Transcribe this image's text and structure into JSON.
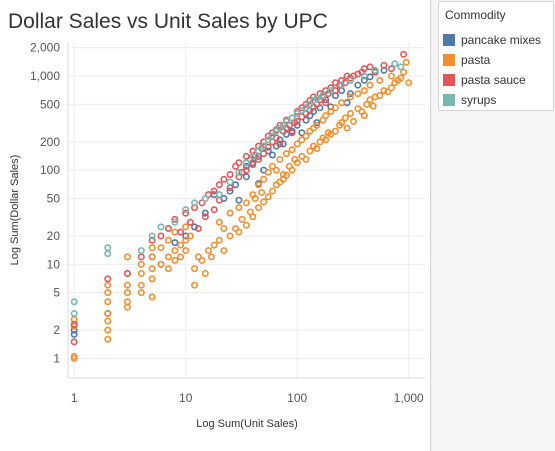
{
  "chart_data": {
    "type": "scatter",
    "title": "Dollar Sales vs Unit Sales by UPC",
    "xlabel": "Log Sum(Unit Sales)",
    "ylabel": "Log Sum(Dollar Sales)",
    "x_scale": "log",
    "y_scale": "log",
    "xlim": [
      0.88,
      1400
    ],
    "ylim": [
      0.62,
      2300
    ],
    "x_ticks": [
      1,
      10,
      100,
      1000
    ],
    "x_tick_labels": [
      "1",
      "10",
      "100",
      "1,000"
    ],
    "y_ticks": [
      1,
      2,
      5,
      10,
      20,
      50,
      100,
      200,
      500,
      1000,
      2000
    ],
    "y_tick_labels": [
      "1",
      "2",
      "5",
      "10",
      "20",
      "50",
      "100",
      "200",
      "500",
      "1,000",
      "2,000"
    ],
    "legend": {
      "title": "Commodity",
      "position": "top-right",
      "items": [
        {
          "label": "pancake mixes",
          "color": "#4e79a7"
        },
        {
          "label": "pasta",
          "color": "#f28e2b"
        },
        {
          "label": "pasta sauce",
          "color": "#e15759"
        },
        {
          "label": "syrups",
          "color": "#76b7b2"
        }
      ]
    },
    "series": [
      {
        "name": "pancake mixes",
        "color": "#4e79a7",
        "points": [
          [
            1,
            2
          ],
          [
            1,
            1.8
          ],
          [
            2,
            3
          ],
          [
            5,
            12
          ],
          [
            6,
            10
          ],
          [
            8,
            17
          ],
          [
            10,
            20
          ],
          [
            12,
            25
          ],
          [
            15,
            35
          ],
          [
            18,
            55
          ],
          [
            22,
            50
          ],
          [
            25,
            60
          ],
          [
            28,
            70
          ],
          [
            30,
            48
          ],
          [
            35,
            85
          ],
          [
            35,
            110
          ],
          [
            40,
            120
          ],
          [
            45,
            140
          ],
          [
            45,
            72
          ],
          [
            50,
            100
          ],
          [
            55,
            160
          ],
          [
            60,
            145
          ],
          [
            65,
            180
          ],
          [
            70,
            210
          ],
          [
            75,
            190
          ],
          [
            80,
            240
          ],
          [
            90,
            260
          ],
          [
            100,
            300
          ],
          [
            110,
            250
          ],
          [
            120,
            340
          ],
          [
            130,
            380
          ],
          [
            140,
            420
          ],
          [
            150,
            320
          ],
          [
            160,
            460
          ],
          [
            180,
            560
          ],
          [
            200,
            470
          ],
          [
            220,
            620
          ],
          [
            250,
            700
          ],
          [
            280,
            520
          ],
          [
            300,
            650
          ],
          [
            350,
            800
          ],
          [
            400,
            900
          ],
          [
            450,
            980
          ],
          [
            500,
            1100
          ],
          [
            600,
            1150
          ]
        ]
      },
      {
        "name": "pasta",
        "color": "#f28e2b",
        "points": [
          [
            1,
            1
          ],
          [
            1,
            1.05
          ],
          [
            1,
            2.2
          ],
          [
            1,
            2.6
          ],
          [
            2,
            1.6
          ],
          [
            2,
            2
          ],
          [
            2,
            2.5
          ],
          [
            2,
            3
          ],
          [
            2,
            4
          ],
          [
            2,
            5
          ],
          [
            2,
            6
          ],
          [
            3,
            3.5
          ],
          [
            3,
            4
          ],
          [
            3,
            5
          ],
          [
            3,
            6
          ],
          [
            3,
            8
          ],
          [
            3,
            12
          ],
          [
            4,
            5
          ],
          [
            4,
            6
          ],
          [
            4,
            8
          ],
          [
            4,
            10
          ],
          [
            5,
            4.5
          ],
          [
            5,
            7
          ],
          [
            5,
            9
          ],
          [
            5,
            12
          ],
          [
            5,
            15
          ],
          [
            6,
            10
          ],
          [
            6,
            15
          ],
          [
            7,
            9
          ],
          [
            7,
            12
          ],
          [
            7,
            18
          ],
          [
            8,
            11
          ],
          [
            8,
            14
          ],
          [
            8,
            22
          ],
          [
            9,
            12
          ],
          [
            9,
            16
          ],
          [
            10,
            14
          ],
          [
            10,
            18
          ],
          [
            10,
            25
          ],
          [
            11,
            20
          ],
          [
            12,
            6
          ],
          [
            12,
            9
          ],
          [
            13,
            12
          ],
          [
            14,
            11
          ],
          [
            15,
            8
          ],
          [
            16,
            14
          ],
          [
            17,
            12
          ],
          [
            18,
            16
          ],
          [
            20,
            18
          ],
          [
            20,
            28
          ],
          [
            22,
            14
          ],
          [
            22,
            24
          ],
          [
            25,
            20
          ],
          [
            25,
            35
          ],
          [
            28,
            24
          ],
          [
            30,
            22
          ],
          [
            30,
            40
          ],
          [
            32,
            30
          ],
          [
            35,
            26
          ],
          [
            35,
            45
          ],
          [
            38,
            36
          ],
          [
            40,
            32
          ],
          [
            40,
            55
          ],
          [
            42,
            50
          ],
          [
            45,
            40
          ],
          [
            45,
            70
          ],
          [
            48,
            58
          ],
          [
            50,
            46
          ],
          [
            50,
            80
          ],
          [
            55,
            52
          ],
          [
            55,
            95
          ],
          [
            60,
            60
          ],
          [
            60,
            110
          ],
          [
            65,
            70
          ],
          [
            65,
            100
          ],
          [
            70,
            75
          ],
          [
            70,
            130
          ],
          [
            75,
            90
          ],
          [
            75,
            80
          ],
          [
            80,
            88
          ],
          [
            80,
            150
          ],
          [
            85,
            110
          ],
          [
            90,
            100
          ],
          [
            90,
            165
          ],
          [
            95,
            130
          ],
          [
            100,
            120
          ],
          [
            100,
            190
          ],
          [
            110,
            140
          ],
          [
            110,
            210
          ],
          [
            120,
            130
          ],
          [
            120,
            230
          ],
          [
            130,
            160
          ],
          [
            130,
            260
          ],
          [
            140,
            180
          ],
          [
            140,
            280
          ],
          [
            150,
            170
          ],
          [
            150,
            300
          ],
          [
            160,
            200
          ],
          [
            170,
            220
          ],
          [
            170,
            340
          ],
          [
            180,
            210
          ],
          [
            180,
            380
          ],
          [
            190,
            250
          ],
          [
            200,
            240
          ],
          [
            200,
            420
          ],
          [
            220,
            260
          ],
          [
            220,
            460
          ],
          [
            240,
            300
          ],
          [
            250,
            320
          ],
          [
            250,
            520
          ],
          [
            270,
            360
          ],
          [
            280,
            280
          ],
          [
            300,
            400
          ],
          [
            300,
            600
          ],
          [
            320,
            330
          ],
          [
            350,
            450
          ],
          [
            350,
            650
          ],
          [
            380,
            420
          ],
          [
            400,
            380
          ],
          [
            400,
            700
          ],
          [
            420,
            500
          ],
          [
            450,
            560
          ],
          [
            450,
            800
          ],
          [
            480,
            480
          ],
          [
            500,
            600
          ],
          [
            550,
            620
          ],
          [
            550,
            900
          ],
          [
            600,
            700
          ],
          [
            650,
            680
          ],
          [
            700,
            750
          ],
          [
            700,
            1000
          ],
          [
            750,
            850
          ],
          [
            800,
            900
          ],
          [
            850,
            950
          ],
          [
            900,
            1100
          ],
          [
            950,
            1400
          ],
          [
            1000,
            850
          ]
        ]
      },
      {
        "name": "pasta sauce",
        "color": "#e15759",
        "points": [
          [
            1,
            1.5
          ],
          [
            1,
            2.3
          ],
          [
            2,
            7
          ],
          [
            3,
            8
          ],
          [
            4,
            12
          ],
          [
            5,
            18
          ],
          [
            6,
            20
          ],
          [
            7,
            24
          ],
          [
            8,
            30
          ],
          [
            9,
            22
          ],
          [
            10,
            35
          ],
          [
            11,
            28
          ],
          [
            12,
            40
          ],
          [
            13,
            24
          ],
          [
            14,
            45
          ],
          [
            15,
            32
          ],
          [
            16,
            55
          ],
          [
            18,
            38
          ],
          [
            18,
            60
          ],
          [
            20,
            70
          ],
          [
            20,
            48
          ],
          [
            22,
            80
          ],
          [
            25,
            65
          ],
          [
            25,
            90
          ],
          [
            28,
            110
          ],
          [
            30,
            85
          ],
          [
            30,
            120
          ],
          [
            32,
            95
          ],
          [
            35,
            100
          ],
          [
            35,
            140
          ],
          [
            38,
            130
          ],
          [
            40,
            115
          ],
          [
            40,
            160
          ],
          [
            42,
            145
          ],
          [
            45,
            130
          ],
          [
            45,
            180
          ],
          [
            48,
            170
          ],
          [
            50,
            150
          ],
          [
            50,
            200
          ],
          [
            55,
            175
          ],
          [
            55,
            230
          ],
          [
            60,
            200
          ],
          [
            60,
            250
          ],
          [
            65,
            220
          ],
          [
            65,
            270
          ],
          [
            70,
            190
          ],
          [
            70,
            300
          ],
          [
            75,
            260
          ],
          [
            80,
            280
          ],
          [
            80,
            340
          ],
          [
            85,
            300
          ],
          [
            90,
            250
          ],
          [
            90,
            360
          ],
          [
            95,
            320
          ],
          [
            100,
            330
          ],
          [
            100,
            420
          ],
          [
            110,
            370
          ],
          [
            110,
            460
          ],
          [
            120,
            400
          ],
          [
            120,
            500
          ],
          [
            130,
            430
          ],
          [
            130,
            550
          ],
          [
            140,
            470
          ],
          [
            140,
            600
          ],
          [
            150,
            500
          ],
          [
            160,
            560
          ],
          [
            160,
            650
          ],
          [
            170,
            600
          ],
          [
            180,
            520
          ],
          [
            180,
            700
          ],
          [
            190,
            650
          ],
          [
            200,
            750
          ],
          [
            220,
            700
          ],
          [
            220,
            850
          ],
          [
            240,
            800
          ],
          [
            250,
            900
          ],
          [
            270,
            850
          ],
          [
            280,
            1000
          ],
          [
            300,
            950
          ],
          [
            320,
            1000
          ],
          [
            350,
            1050
          ],
          [
            380,
            1100
          ],
          [
            400,
            1200
          ],
          [
            450,
            1250
          ],
          [
            500,
            1100
          ],
          [
            600,
            1300
          ],
          [
            700,
            1200
          ],
          [
            900,
            1700
          ]
        ]
      },
      {
        "name": "syrups",
        "color": "#76b7b2",
        "points": [
          [
            1,
            4
          ],
          [
            1,
            3
          ],
          [
            2,
            15
          ],
          [
            2,
            13
          ],
          [
            4,
            14
          ],
          [
            5,
            20
          ],
          [
            6,
            25
          ],
          [
            8,
            28
          ],
          [
            10,
            38
          ],
          [
            12,
            45
          ],
          [
            15,
            50
          ],
          [
            20,
            55
          ],
          [
            25,
            75
          ],
          [
            30,
            95
          ],
          [
            35,
            120
          ],
          [
            40,
            140
          ],
          [
            45,
            160
          ],
          [
            50,
            180
          ],
          [
            55,
            210
          ],
          [
            60,
            230
          ],
          [
            65,
            260
          ],
          [
            70,
            280
          ],
          [
            75,
            300
          ],
          [
            80,
            330
          ],
          [
            90,
            360
          ],
          [
            100,
            400
          ],
          [
            110,
            430
          ],
          [
            120,
            460
          ],
          [
            130,
            500
          ],
          [
            140,
            550
          ],
          [
            150,
            580
          ],
          [
            170,
            620
          ],
          [
            200,
            700
          ],
          [
            250,
            800
          ],
          [
            300,
            900
          ],
          [
            400,
            1000
          ],
          [
            500,
            1150
          ],
          [
            750,
            1350
          ],
          [
            850,
            1250
          ]
        ]
      }
    ]
  }
}
